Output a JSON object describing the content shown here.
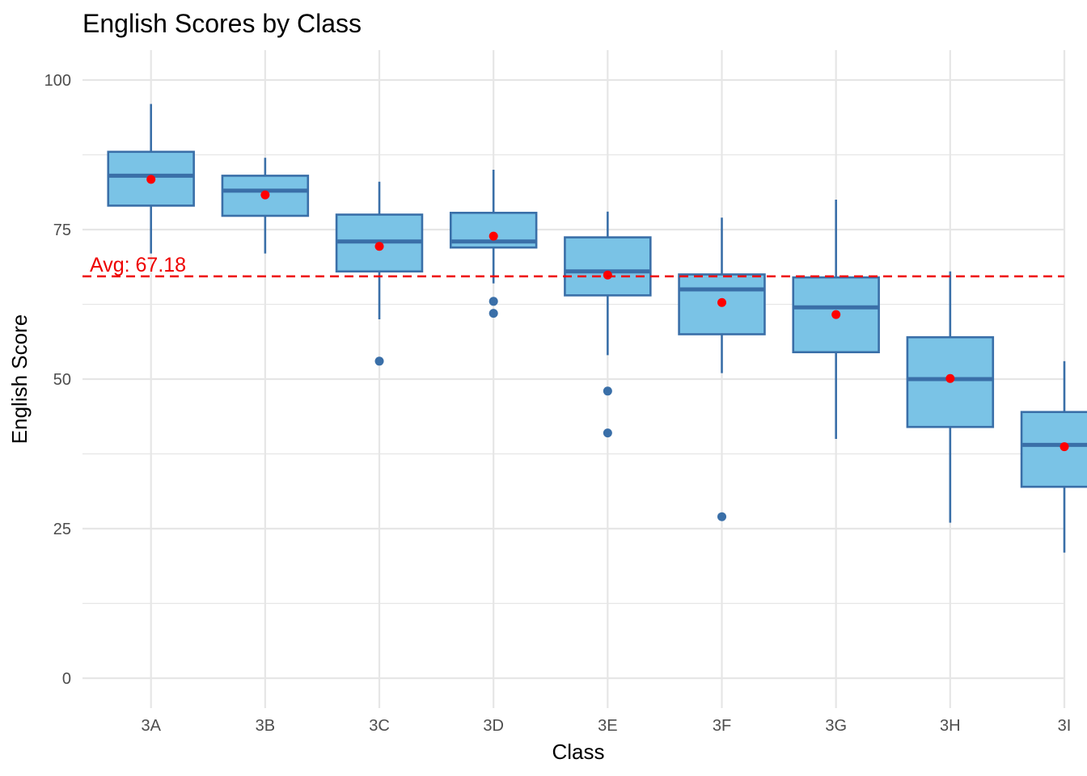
{
  "chart_data": {
    "type": "box",
    "title": "English Scores by Class",
    "xlabel": "Class",
    "ylabel": "English Score",
    "ylim": [
      -5,
      105
    ],
    "y_ticks": [
      0,
      25,
      50,
      75,
      100
    ],
    "y_tick_labels": [
      "0",
      "25",
      "50",
      "75",
      "100"
    ],
    "grid": true,
    "categories": [
      "3A",
      "3B",
      "3C",
      "3D",
      "3E",
      "3F",
      "3G",
      "3H",
      "3I"
    ],
    "boxes": [
      {
        "class": "3A",
        "whisker_low": 71,
        "q1": 79,
        "median": 84,
        "q3": 88,
        "whisker_high": 96,
        "mean": 83.4,
        "outliers": []
      },
      {
        "class": "3B",
        "whisker_low": 71,
        "q1": 77.3,
        "median": 81.5,
        "q3": 84,
        "whisker_high": 87,
        "mean": 80.8,
        "outliers": []
      },
      {
        "class": "3C",
        "whisker_low": 60,
        "q1": 68,
        "median": 73,
        "q3": 77.5,
        "whisker_high": 83,
        "mean": 72.2,
        "outliers": [
          53
        ]
      },
      {
        "class": "3D",
        "whisker_low": 66,
        "q1": 72,
        "median": 73,
        "q3": 77.8,
        "whisker_high": 85,
        "mean": 73.9,
        "outliers": [
          63,
          61
        ]
      },
      {
        "class": "3E",
        "whisker_low": 54,
        "q1": 64,
        "median": 68,
        "q3": 73.7,
        "whisker_high": 78,
        "mean": 67.4,
        "outliers": [
          48,
          41
        ]
      },
      {
        "class": "3F",
        "whisker_low": 51,
        "q1": 57.5,
        "median": 65,
        "q3": 67.5,
        "whisker_high": 77,
        "mean": 62.8,
        "outliers": [
          27
        ]
      },
      {
        "class": "3G",
        "whisker_low": 40,
        "q1": 54.5,
        "median": 62,
        "q3": 67,
        "whisker_high": 80,
        "mean": 60.8,
        "outliers": []
      },
      {
        "class": "3H",
        "whisker_low": 26,
        "q1": 42,
        "median": 50,
        "q3": 57,
        "whisker_high": 68,
        "mean": 50.1,
        "outliers": []
      },
      {
        "class": "3I",
        "whisker_low": 21,
        "q1": 32,
        "median": 39,
        "q3": 44.5,
        "whisker_high": 53,
        "mean": 38.7,
        "outliers": []
      }
    ],
    "reference_line": {
      "value": 67.18,
      "label": "Avg: 67.18",
      "style": "dashed",
      "color": "#ee0000"
    },
    "colors": {
      "box_fill": "#7ac3e6",
      "box_stroke": "#3a6fa8",
      "mean_point": "#ff0000",
      "outlier": "#3a6fa8",
      "grid": "#e6e6e6"
    }
  }
}
